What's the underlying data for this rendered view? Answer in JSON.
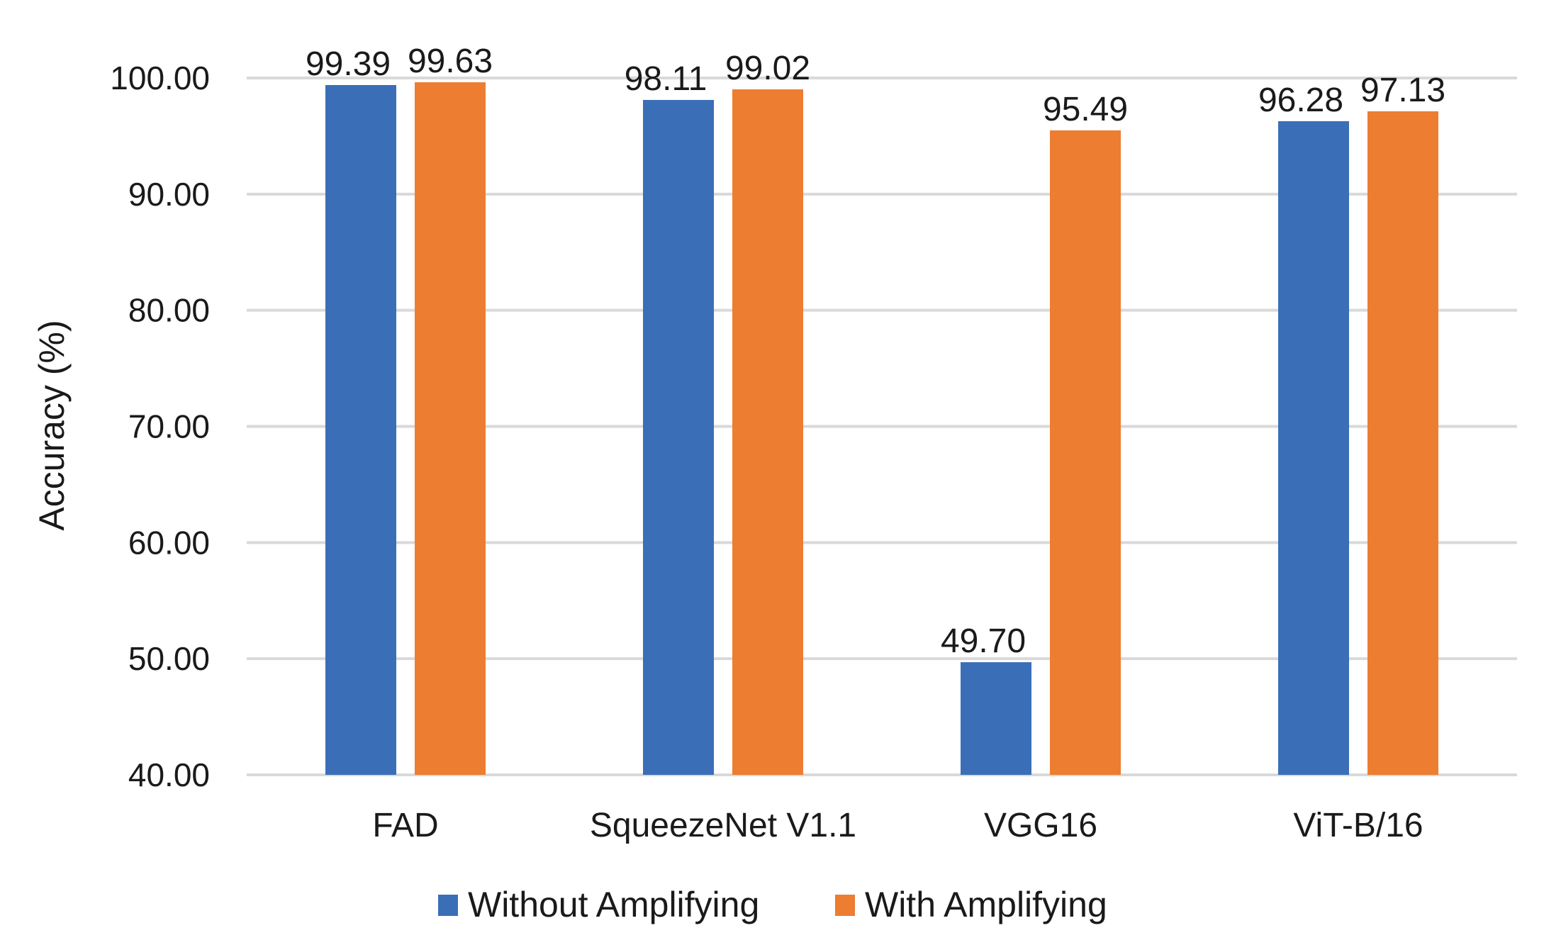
{
  "chart_data": {
    "type": "bar",
    "title": "",
    "xlabel": "",
    "ylabel": "Accuracy (%)",
    "ylim": [
      40,
      100
    ],
    "yticks": [
      "40.00",
      "50.00",
      "60.00",
      "70.00",
      "80.00",
      "90.00",
      "100.00"
    ],
    "grid": true,
    "legend_position": "bottom",
    "categories": [
      "FAD",
      "SqueezeNet V1.1",
      "VGG16",
      "ViT-B/16"
    ],
    "series": [
      {
        "name": "Without Amplifying",
        "color": "#3A6FB8",
        "values": [
          99.39,
          98.11,
          49.7,
          96.28
        ],
        "labels": [
          "99.39",
          "98.11",
          "49.70",
          "96.28"
        ]
      },
      {
        "name": "With Amplifying",
        "color": "#ED7D31",
        "values": [
          99.63,
          99.02,
          95.49,
          97.13
        ],
        "labels": [
          "99.63",
          "99.02",
          "95.49",
          "97.13"
        ]
      }
    ]
  }
}
